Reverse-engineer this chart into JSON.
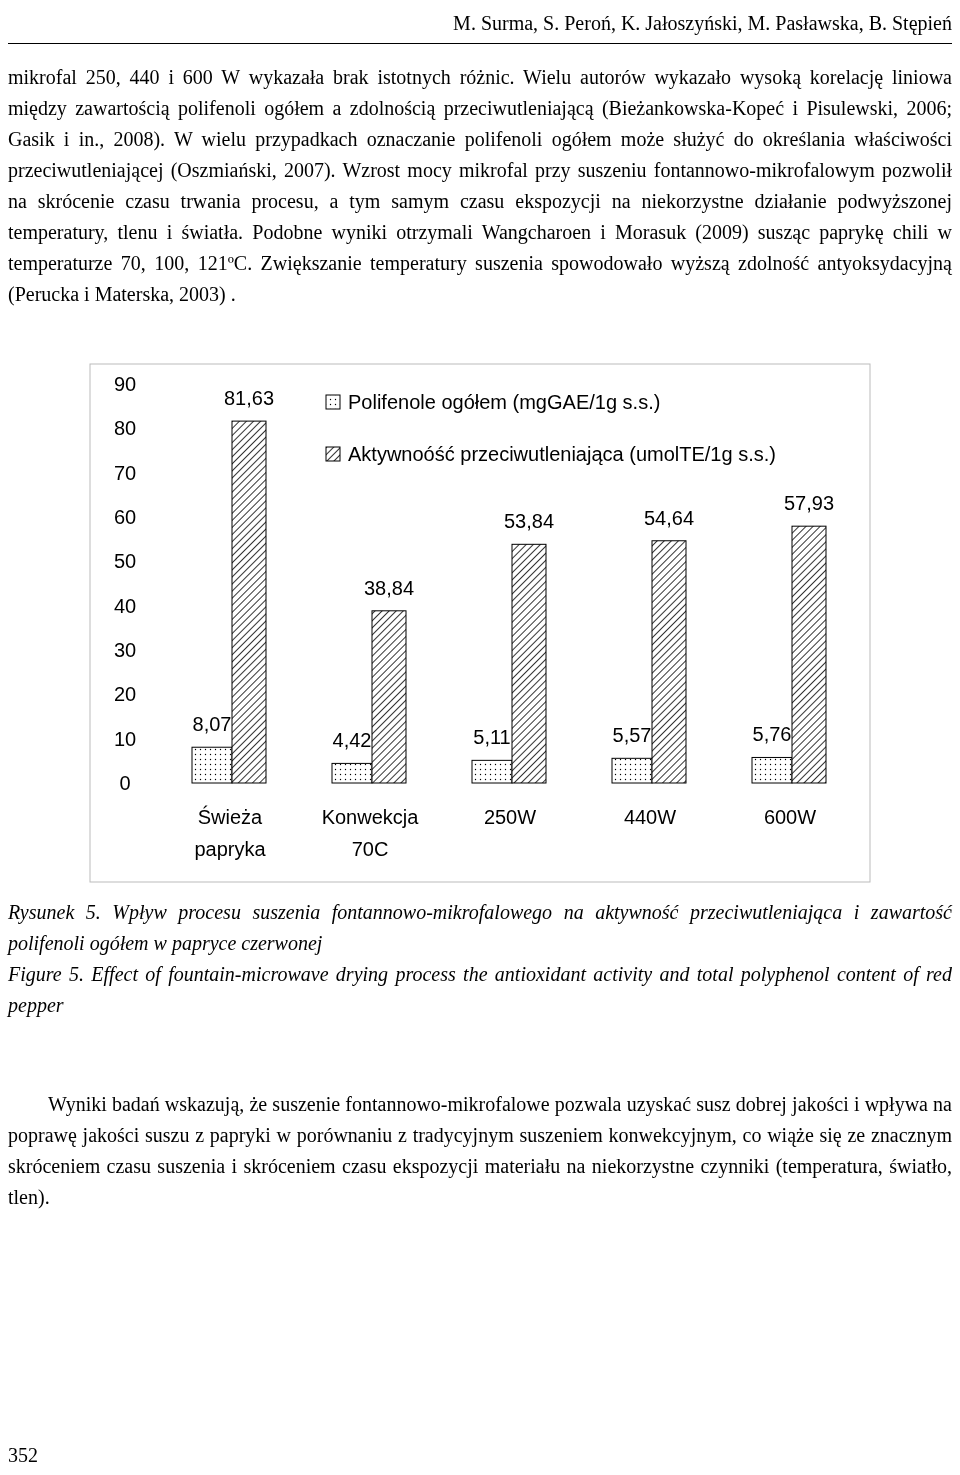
{
  "chart_data": {
    "type": "bar",
    "categories": [
      "Świeża papryka",
      "Konwekcja 70C",
      "250W",
      "440W",
      "600W"
    ],
    "series": [
      {
        "name": "Polifenole ogółem (mgGAE/1g s.s.)",
        "color": "#000000",
        "values": [
          8.07,
          4.42,
          5.11,
          5.57,
          5.76
        ],
        "value_labels": [
          "8,07",
          "4,42",
          "5,11",
          "5,57",
          "5,76"
        ]
      },
      {
        "name": "Aktywnoóść przeciwutleniająca (umolTE/1g s.s.)",
        "color": "#000000",
        "values": [
          81.63,
          38.84,
          53.84,
          54.64,
          57.93
        ],
        "value_labels": [
          "81,63",
          "38,84",
          "53,84",
          "54,64",
          "57,93"
        ]
      }
    ],
    "ylim": [
      0,
      90
    ],
    "yticks": [
      0,
      10,
      20,
      30,
      40,
      50,
      60,
      70,
      80,
      90
    ],
    "grid": false,
    "legend": "top right",
    "annotations": [
      "M. Surma, S. Peroń, K. Jałoszyński, M. Pasławska, B. Stępień",
      "mikrofal 250, 440 i 600 W wykazała brak istotnych różnic. Wielu autorów wykazało wysoką korelację liniowa między zawartością polifenoli ogółem a zdolnością przeciwutleniającą (Bieżankowska-Kopeć i Pisulewski, 2006; Gasik i in., 2008). W wielu przypadkach oznaczanie polifenoli ogółem może służyć do określania właściwości przeciwutleniającej (Oszmiański, 2007). Wzrost mocy mikrofal przy suszeniu fontannowo-mikrofalowym pozwolił na skrócenie czasu trwania procesu, a tym samym czasu ekspozycji na niekorzystne działanie podwyższonej temperatury, tlenu i światła. Podobne wyniki otrzymali Wangcharoen i Morasuk (2009) susząc paprykę chili w temperaturze 70, 100, 121ºC. Zwiększanie temperatury suszenia spowodowało wyższą zdolność antyoksydacyjną (Perucka i Materska, 2003) .",
      "Rysunek 5. Wpływ procesu suszenia fontannowo-mikrofalowego na aktywność przeciwutleniająca i zawartość polifenoli ogółem w papryce czerwonej",
      "Figure 5. Effect of fountain-microwave drying process the antioxidant activity and total polyphenol content of red pepper",
      "Wyniki badań wskazują, że suszenie fontannowo-mikrofalowe pozwala uzyskać susz dobrej jakości i wpływa na poprawę jakości suszu z papryki w porównaniu z tradycyjnym suszeniem konwekcyjnym, co wiąże się ze znacznym skróceniem czasu suszenia i skróceniem czasu ekspozycji materiału na niekorzystne czynniki (temperatura, światło, tlen).",
      "352"
    ]
  }
}
